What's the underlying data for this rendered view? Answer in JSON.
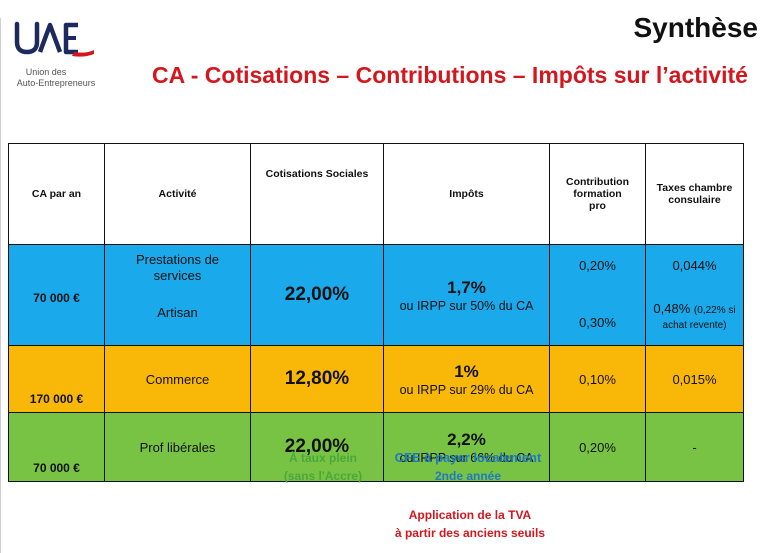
{
  "logo": {
    "text": "UAE",
    "tagline_line1": "Union des",
    "tagline_line2": "Auto-Entrepreneurs"
  },
  "slide_label": "Synthèse",
  "headline": "CA - Cotisations – Contributions – Impôts sur l’activité",
  "table": {
    "headers": {
      "ca": "CA par an",
      "activite": "Activité",
      "cotisations": "Cotisations Sociales",
      "impots": "Impôts",
      "formation": "Contribution formation pro",
      "chambre": "Taxes chambre consulaire"
    },
    "rows": [
      {
        "ca": "70 000 €",
        "activite_1": "Prestations de services",
        "activite_2": "Artisan",
        "cotisations": "22,00%",
        "impots_main": "1,7%",
        "impots_sub": "ou IRPP sur 50% du CA",
        "formation_1": "0,20%",
        "formation_2": "0,30%",
        "chambre_1": "0,044%",
        "chambre_2_main": "0,48%",
        "chambre_2_note_a": "(0,22% si",
        "chambre_2_note_b": "achat revente)"
      },
      {
        "ca": "170 000 €",
        "activite": "Commerce",
        "cotisations": "12,80%",
        "impots_main": "1%",
        "impots_sub": "ou IRPP sur 29% du CA",
        "formation": "0,10%",
        "chambre": "0,015%"
      },
      {
        "ca": "70 000 €",
        "activite": "Prof libérales",
        "cotisations": "22,00%",
        "impots_main": "2,2%",
        "impots_sub": "ou IRPP sur 66% du CA",
        "formation": "0,20%",
        "chambre": "-"
      }
    ]
  },
  "notes": {
    "taux_line1": "À taux plein",
    "taux_line2": "(sans l'Accre)",
    "cfe_line1": "CFE à payer localement",
    "cfe_line2": "2nde année",
    "tva_line1": "Application de la TVA",
    "tva_line2": "à partir des anciens seuils"
  },
  "colors": {
    "accent_red": "#d4161d",
    "row_blue": "#1aa9ea",
    "row_orange": "#f9b708",
    "row_green": "#78c344",
    "logo_navy": "#1c2a5e"
  }
}
